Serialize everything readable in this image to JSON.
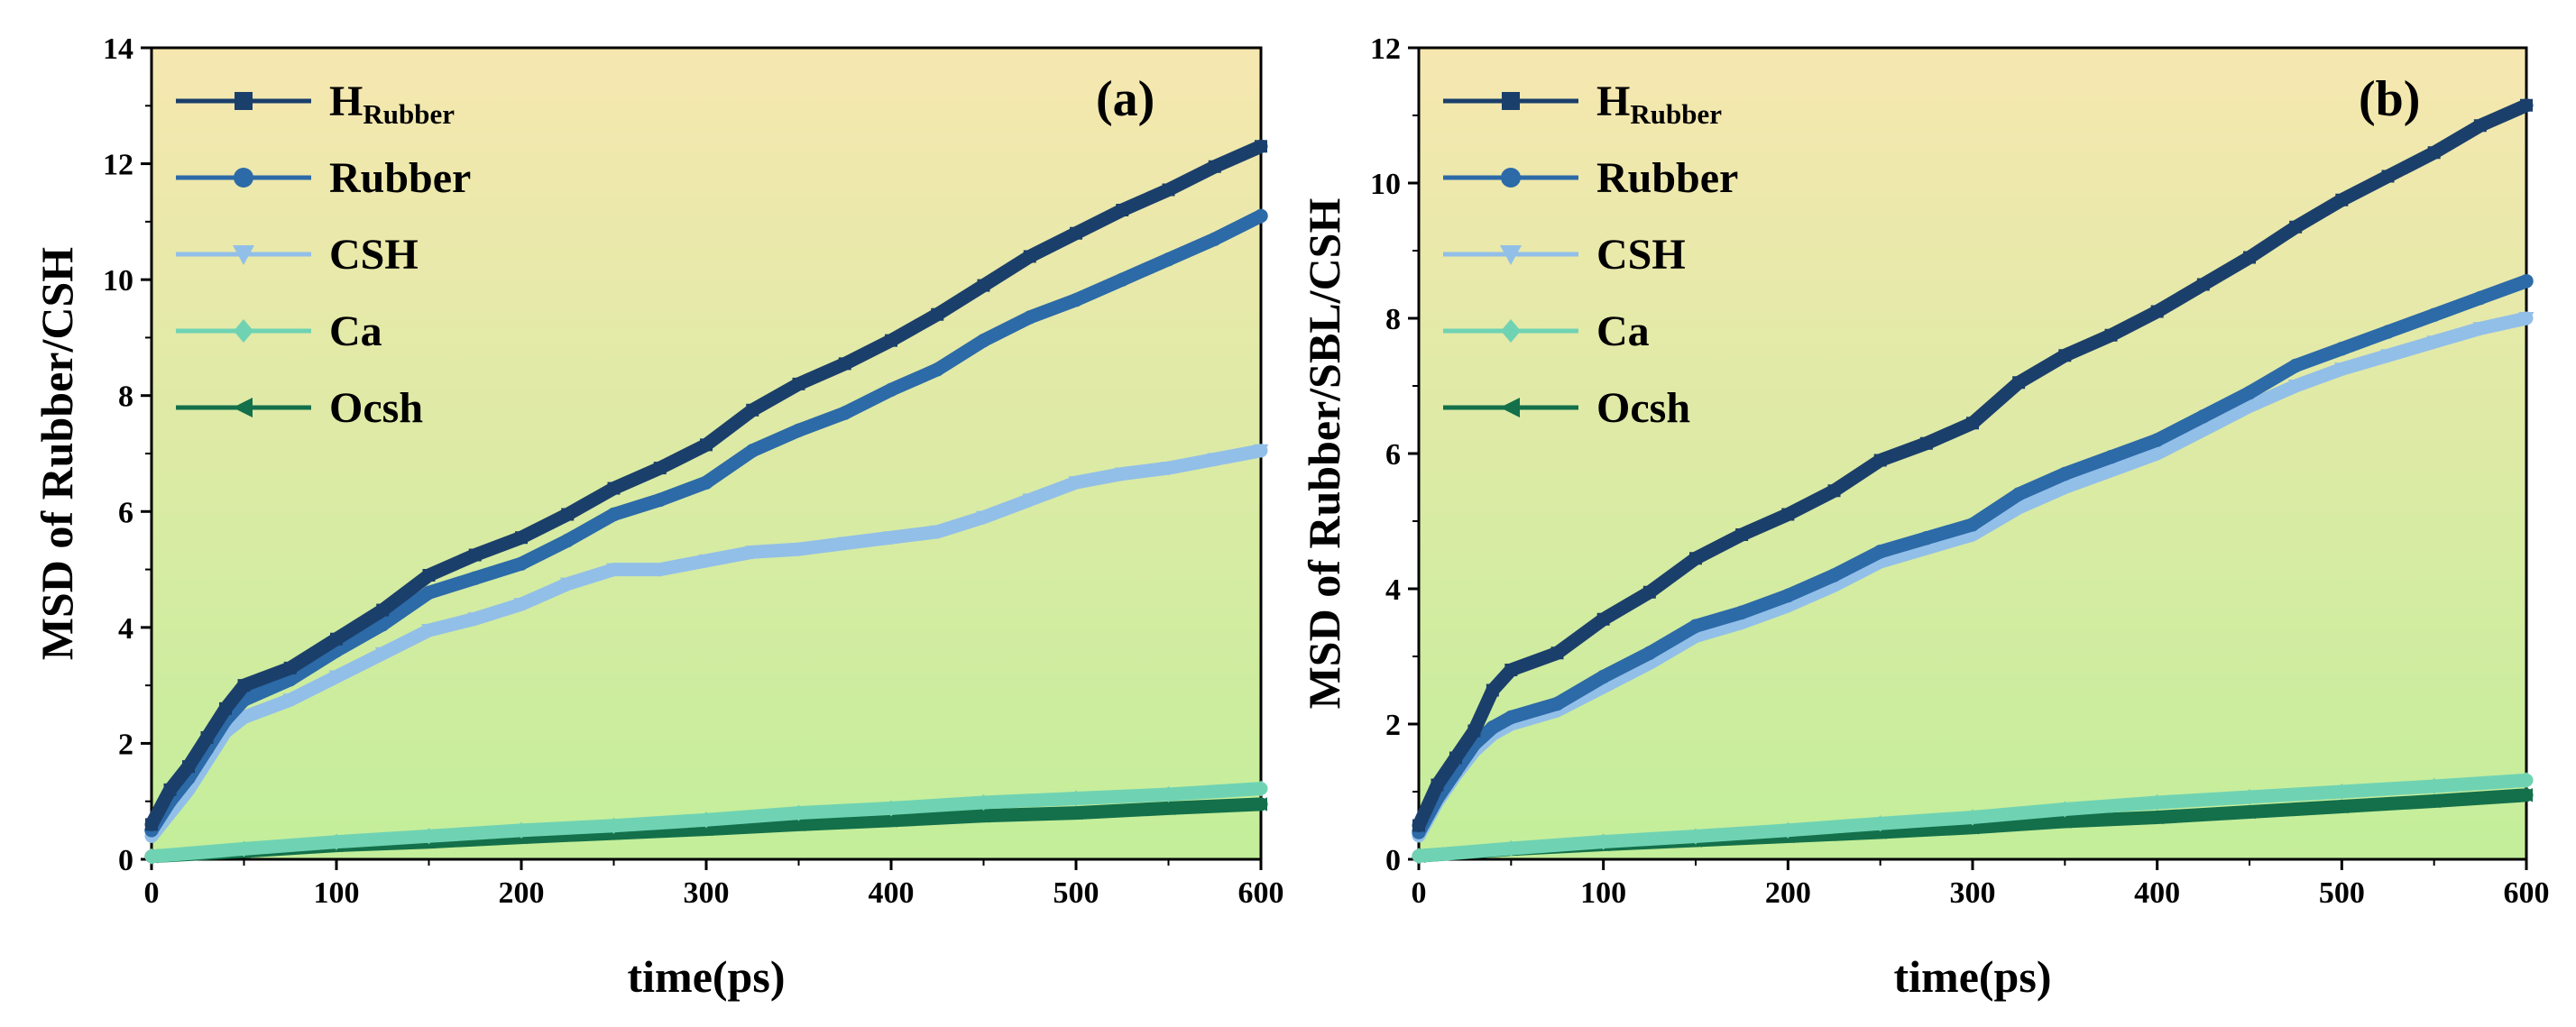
{
  "figure": {
    "background": "#ffffff",
    "gradient_top": "#f6e7b0",
    "gradient_bottom": "#c3ee9a"
  },
  "chart_data": [
    {
      "type": "line",
      "panel_label": "(a)",
      "title": "",
      "xlabel": "time(ps)",
      "ylabel": "MSD of Rubber/CSH",
      "xlim": [
        0,
        600
      ],
      "ylim": [
        0,
        14
      ],
      "xticks": [
        0,
        100,
        200,
        300,
        400,
        500,
        600
      ],
      "yticks": [
        0,
        2,
        4,
        6,
        8,
        10,
        12,
        14
      ],
      "grid": false,
      "legend_position": "top-left",
      "series": [
        {
          "name": "HRubber",
          "main": "H",
          "sub": "Rubber",
          "color": "#1b3f6b",
          "marker": "square",
          "x": [
            0,
            10,
            20,
            30,
            40,
            50,
            75,
            100,
            125,
            150,
            175,
            200,
            225,
            250,
            275,
            300,
            325,
            350,
            375,
            400,
            425,
            450,
            475,
            500,
            525,
            550,
            575,
            600
          ],
          "y": [
            0.6,
            1.2,
            1.6,
            2.1,
            2.6,
            3.0,
            3.3,
            3.8,
            4.3,
            4.9,
            5.25,
            5.55,
            5.95,
            6.4,
            6.75,
            7.15,
            7.75,
            8.2,
            8.55,
            8.95,
            9.4,
            9.9,
            10.4,
            10.8,
            11.2,
            11.55,
            11.95,
            12.3
          ]
        },
        {
          "name": "Rubber",
          "main": "Rubber",
          "sub": "",
          "color": "#2c6aa8",
          "marker": "circle",
          "x": [
            0,
            10,
            20,
            30,
            40,
            50,
            75,
            100,
            125,
            150,
            175,
            200,
            225,
            250,
            275,
            300,
            325,
            350,
            375,
            400,
            425,
            450,
            475,
            500,
            525,
            550,
            575,
            600
          ],
          "y": [
            0.5,
            1.0,
            1.4,
            1.9,
            2.4,
            2.75,
            3.1,
            3.6,
            4.05,
            4.6,
            4.85,
            5.1,
            5.5,
            5.95,
            6.2,
            6.5,
            7.05,
            7.4,
            7.7,
            8.1,
            8.45,
            8.95,
            9.35,
            9.65,
            10.0,
            10.35,
            10.7,
            11.1
          ]
        },
        {
          "name": "CSH",
          "main": "CSH",
          "sub": "",
          "color": "#92bfe8",
          "marker": "triangle-down",
          "x": [
            0,
            10,
            20,
            30,
            40,
            50,
            75,
            100,
            125,
            150,
            175,
            200,
            225,
            250,
            275,
            300,
            325,
            350,
            375,
            400,
            425,
            450,
            475,
            500,
            525,
            550,
            575,
            600
          ],
          "y": [
            0.4,
            0.8,
            1.2,
            1.7,
            2.2,
            2.45,
            2.75,
            3.15,
            3.55,
            3.95,
            4.15,
            4.4,
            4.75,
            5.0,
            5.0,
            5.15,
            5.3,
            5.35,
            5.45,
            5.55,
            5.65,
            5.9,
            6.2,
            6.5,
            6.65,
            6.75,
            6.9,
            7.05
          ]
        },
        {
          "name": "Ca",
          "main": "Ca",
          "sub": "",
          "color": "#6fd3b3",
          "marker": "diamond",
          "x": [
            0,
            50,
            100,
            150,
            200,
            250,
            300,
            350,
            400,
            450,
            500,
            550,
            600
          ],
          "y": [
            0.05,
            0.18,
            0.3,
            0.4,
            0.5,
            0.58,
            0.68,
            0.8,
            0.88,
            0.98,
            1.05,
            1.12,
            1.22
          ]
        },
        {
          "name": "Ocsh",
          "main": "Ocsh",
          "sub": "",
          "color": "#13704a",
          "marker": "triangle-left",
          "x": [
            0,
            50,
            100,
            150,
            200,
            250,
            300,
            350,
            400,
            450,
            500,
            550,
            600
          ],
          "y": [
            0.05,
            0.14,
            0.24,
            0.3,
            0.38,
            0.45,
            0.52,
            0.6,
            0.67,
            0.75,
            0.8,
            0.88,
            0.95
          ]
        }
      ]
    },
    {
      "type": "line",
      "panel_label": "(b)",
      "title": "",
      "xlabel": "time(ps)",
      "ylabel": "MSD of Rubber/SBL/CSH",
      "xlim": [
        0,
        600
      ],
      "ylim": [
        0,
        12
      ],
      "xticks": [
        0,
        100,
        200,
        300,
        400,
        500,
        600
      ],
      "yticks": [
        0,
        2,
        4,
        6,
        8,
        10,
        12
      ],
      "grid": false,
      "legend_position": "top-left",
      "series": [
        {
          "name": "HRubber",
          "main": "H",
          "sub": "Rubber",
          "color": "#1b3f6b",
          "marker": "square",
          "x": [
            0,
            10,
            20,
            30,
            40,
            50,
            75,
            100,
            125,
            150,
            175,
            200,
            225,
            250,
            275,
            300,
            325,
            350,
            375,
            400,
            425,
            450,
            475,
            500,
            525,
            550,
            575,
            600
          ],
          "y": [
            0.5,
            1.1,
            1.5,
            1.9,
            2.5,
            2.8,
            3.05,
            3.55,
            3.95,
            4.45,
            4.8,
            5.1,
            5.45,
            5.9,
            6.15,
            6.45,
            7.05,
            7.45,
            7.75,
            8.1,
            8.5,
            8.9,
            9.35,
            9.75,
            10.1,
            10.45,
            10.85,
            11.15
          ]
        },
        {
          "name": "Rubber",
          "main": "Rubber",
          "sub": "",
          "color": "#2c6aa8",
          "marker": "circle",
          "x": [
            0,
            10,
            20,
            30,
            40,
            50,
            75,
            100,
            125,
            150,
            175,
            200,
            225,
            250,
            275,
            300,
            325,
            350,
            375,
            400,
            425,
            450,
            475,
            500,
            525,
            550,
            575,
            600
          ],
          "y": [
            0.4,
            0.9,
            1.3,
            1.7,
            1.95,
            2.1,
            2.3,
            2.7,
            3.05,
            3.45,
            3.65,
            3.9,
            4.2,
            4.55,
            4.75,
            4.95,
            5.4,
            5.7,
            5.95,
            6.2,
            6.55,
            6.9,
            7.3,
            7.55,
            7.8,
            8.05,
            8.3,
            8.55
          ]
        },
        {
          "name": "CSH",
          "main": "CSH",
          "sub": "",
          "color": "#92bfe8",
          "marker": "triangle-down",
          "x": [
            0,
            10,
            20,
            30,
            40,
            50,
            75,
            100,
            125,
            150,
            175,
            200,
            225,
            250,
            275,
            300,
            325,
            350,
            375,
            400,
            425,
            450,
            475,
            500,
            525,
            550,
            575,
            600
          ],
          "y": [
            0.35,
            0.85,
            1.25,
            1.6,
            1.85,
            2.0,
            2.2,
            2.55,
            2.9,
            3.3,
            3.5,
            3.75,
            4.05,
            4.4,
            4.6,
            4.8,
            5.2,
            5.5,
            5.75,
            6.0,
            6.35,
            6.7,
            7.0,
            7.25,
            7.45,
            7.65,
            7.85,
            8.0
          ]
        },
        {
          "name": "Ca",
          "main": "Ca",
          "sub": "",
          "color": "#6fd3b3",
          "marker": "diamond",
          "x": [
            0,
            50,
            100,
            150,
            200,
            250,
            300,
            350,
            400,
            450,
            500,
            550,
            600
          ],
          "y": [
            0.05,
            0.16,
            0.26,
            0.34,
            0.43,
            0.53,
            0.62,
            0.74,
            0.84,
            0.92,
            1.0,
            1.08,
            1.17
          ]
        },
        {
          "name": "Ocsh",
          "main": "Ocsh",
          "sub": "",
          "color": "#13704a",
          "marker": "triangle-left",
          "x": [
            0,
            50,
            100,
            150,
            200,
            250,
            300,
            350,
            400,
            450,
            500,
            550,
            600
          ],
          "y": [
            0.05,
            0.15,
            0.22,
            0.28,
            0.34,
            0.4,
            0.47,
            0.56,
            0.62,
            0.7,
            0.78,
            0.86,
            0.95
          ]
        }
      ]
    }
  ]
}
